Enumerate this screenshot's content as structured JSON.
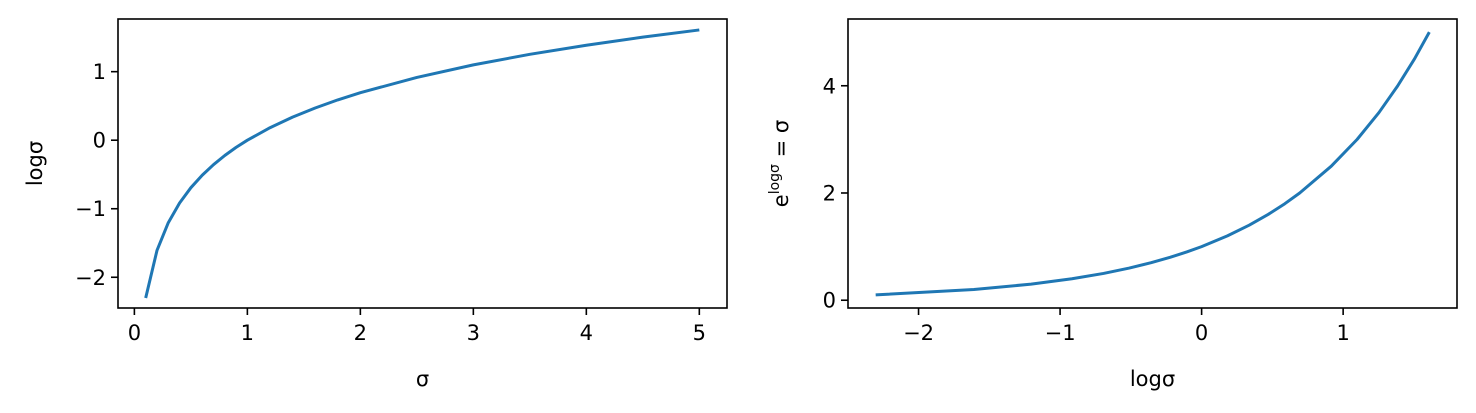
{
  "colors": {
    "line": "#1f77b4"
  },
  "chart_data": [
    {
      "type": "line",
      "xlabel": "σ",
      "ylabel": "logσ",
      "xlim": [
        -0.145,
        5.245
      ],
      "ylim": [
        -2.4485,
        1.7685
      ],
      "xticks": [
        0,
        1,
        2,
        3,
        4,
        5
      ],
      "xtick_labels": [
        "0",
        "1",
        "2",
        "3",
        "4",
        "5"
      ],
      "yticks": [
        -2,
        -1,
        0,
        1
      ],
      "ytick_labels": [
        "−2",
        "−1",
        "0",
        "1"
      ],
      "series": [
        {
          "x": [
            0.1,
            0.2,
            0.3,
            0.4,
            0.5,
            0.6,
            0.7,
            0.8,
            0.9,
            1.0,
            1.2,
            1.4,
            1.6,
            1.8,
            2.0,
            2.5,
            3.0,
            3.5,
            4.0,
            4.5,
            5.0
          ],
          "y": [
            -2.303,
            -1.609,
            -1.204,
            -0.916,
            -0.693,
            -0.511,
            -0.357,
            -0.223,
            -0.105,
            0.0,
            0.182,
            0.336,
            0.47,
            0.588,
            0.693,
            0.916,
            1.099,
            1.253,
            1.386,
            1.504,
            1.609
          ]
        }
      ]
    },
    {
      "type": "line",
      "xlabel": "logσ",
      "ylabel_base": "e",
      "ylabel_sup": "logσ",
      "ylabel_rest": " = σ",
      "xlim": [
        -2.4985,
        1.8045
      ],
      "ylim": [
        -0.145,
        5.245
      ],
      "xticks": [
        -2,
        -1,
        0,
        1
      ],
      "xtick_labels": [
        "−2",
        "−1",
        "0",
        "1"
      ],
      "yticks": [
        0,
        2,
        4
      ],
      "ytick_labels": [
        "0",
        "2",
        "4"
      ],
      "series": [
        {
          "x": [
            -2.303,
            -1.609,
            -1.204,
            -0.916,
            -0.693,
            -0.511,
            -0.357,
            -0.223,
            -0.105,
            0.0,
            0.182,
            0.336,
            0.47,
            0.588,
            0.693,
            0.916,
            1.099,
            1.253,
            1.386,
            1.504,
            1.609
          ],
          "y": [
            0.1,
            0.2,
            0.3,
            0.4,
            0.5,
            0.6,
            0.7,
            0.8,
            0.9,
            1.0,
            1.2,
            1.4,
            1.6,
            1.8,
            2.0,
            2.5,
            3.0,
            3.5,
            4.0,
            4.5,
            5.0
          ]
        }
      ]
    }
  ]
}
